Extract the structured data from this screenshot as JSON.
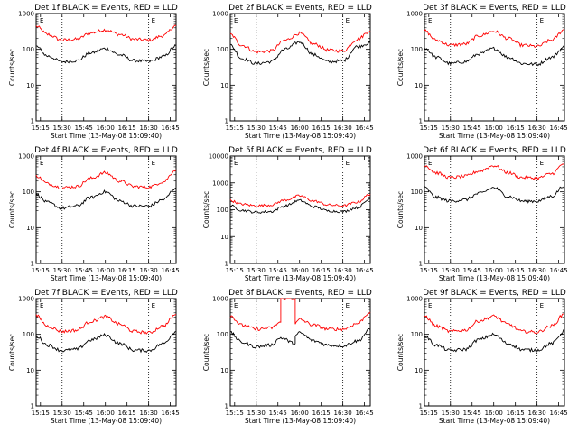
{
  "chart_data": [
    {
      "type": "line",
      "title": "Det 1f BLACK = Events, RED = LLD",
      "xlabel": "Start Time (13-May-08 15:09:40)",
      "ylabel": "Counts/sec",
      "y_scale": "log",
      "ylim": [
        1,
        1000
      ],
      "x_tick_labels": [
        "15:15",
        "15:30",
        "15:45",
        "16:00",
        "16:15",
        "16:30",
        "16:45"
      ],
      "y_tick_labels": [
        "1",
        "10",
        "100",
        "1000"
      ],
      "markers": [
        "E",
        "E"
      ],
      "series": [
        {
          "color": "#ff0000",
          "x": [
            "15:12",
            "15:20",
            "15:30",
            "15:40",
            "15:50",
            "16:00",
            "16:10",
            "16:20",
            "16:30",
            "16:40",
            "16:49"
          ],
          "values": [
            440,
            260,
            180,
            190,
            290,
            350,
            260,
            190,
            180,
            240,
            460
          ]
        },
        {
          "color": "#000000",
          "x": [
            "15:12",
            "15:20",
            "15:30",
            "15:40",
            "15:50",
            "16:00",
            "16:10",
            "16:20",
            "16:30",
            "16:40",
            "16:49"
          ],
          "values": [
            120,
            65,
            45,
            48,
            80,
            105,
            70,
            48,
            46,
            62,
            125
          ]
        }
      ]
    },
    {
      "type": "line",
      "title": "Det 2f BLACK = Events, RED = LLD",
      "xlabel": "Start Time (13-May-08 15:09:40)",
      "ylabel": "Counts/sec",
      "y_scale": "log",
      "ylim": [
        1,
        1000
      ],
      "x_tick_labels": [
        "15:15",
        "15:30",
        "15:45",
        "16:00",
        "16:15",
        "16:30",
        "16:45"
      ],
      "y_tick_labels": [
        "1",
        "10",
        "100",
        "1000"
      ],
      "markers": [
        "E",
        "E"
      ],
      "series": [
        {
          "color": "#ff0000",
          "x": [
            "15:12",
            "15:20",
            "15:30",
            "15:40",
            "15:50",
            "16:00",
            "16:10",
            "16:20",
            "16:30",
            "16:40",
            "16:49"
          ],
          "values": [
            260,
            130,
            85,
            90,
            180,
            280,
            140,
            95,
            90,
            190,
            330
          ]
        },
        {
          "color": "#000000",
          "x": [
            "15:12",
            "15:20",
            "15:30",
            "15:40",
            "15:50",
            "16:00",
            "16:10",
            "16:20",
            "16:30",
            "16:40",
            "16:49"
          ],
          "values": [
            130,
            55,
            40,
            45,
            100,
            160,
            70,
            45,
            48,
            120,
            150
          ]
        }
      ]
    },
    {
      "type": "line",
      "title": "Det 3f BLACK = Events, RED = LLD",
      "xlabel": "Start Time (13-May-08 15:09:40)",
      "ylabel": "Counts/sec",
      "y_scale": "log",
      "ylim": [
        1,
        1000
      ],
      "x_tick_labels": [
        "15:15",
        "15:30",
        "15:45",
        "16:00",
        "16:15",
        "16:30",
        "16:45"
      ],
      "y_tick_labels": [
        "1",
        "10",
        "100",
        "1000"
      ],
      "markers": [
        "E",
        "E"
      ],
      "series": [
        {
          "color": "#ff0000",
          "x": [
            "15:12",
            "15:20",
            "15:30",
            "15:40",
            "15:50",
            "16:00",
            "16:10",
            "16:20",
            "16:30",
            "16:40",
            "16:49"
          ],
          "values": [
            330,
            180,
            130,
            140,
            240,
            320,
            200,
            130,
            120,
            180,
            350
          ]
        },
        {
          "color": "#000000",
          "x": [
            "15:12",
            "15:20",
            "15:30",
            "15:40",
            "15:50",
            "16:00",
            "16:10",
            "16:20",
            "16:30",
            "16:40",
            "16:49"
          ],
          "values": [
            110,
            60,
            40,
            45,
            75,
            105,
            60,
            40,
            38,
            60,
            115
          ]
        }
      ]
    },
    {
      "type": "line",
      "title": "Det 4f BLACK = Events, RED = LLD",
      "xlabel": "Start Time (13-May-08 15:09:40)",
      "ylabel": "Counts/sec",
      "y_scale": "log",
      "ylim": [
        1,
        1000
      ],
      "x_tick_labels": [
        "15:15",
        "15:30",
        "15:45",
        "16:00",
        "16:15",
        "16:30",
        "16:45"
      ],
      "y_tick_labels": [
        "1",
        "10",
        "100",
        "1000"
      ],
      "markers": [
        "E",
        "E"
      ],
      "series": [
        {
          "color": "#ff0000",
          "x": [
            "15:12",
            "15:20",
            "15:30",
            "15:40",
            "15:50",
            "16:00",
            "16:10",
            "16:20",
            "16:30",
            "16:40",
            "16:49"
          ],
          "values": [
            280,
            170,
            130,
            140,
            240,
            340,
            200,
            140,
            135,
            190,
            420
          ]
        },
        {
          "color": "#000000",
          "x": [
            "15:12",
            "15:20",
            "15:30",
            "15:40",
            "15:50",
            "16:00",
            "16:10",
            "16:20",
            "16:30",
            "16:40",
            "16:49"
          ],
          "values": [
            85,
            50,
            35,
            40,
            70,
            100,
            55,
            40,
            40,
            60,
            130
          ]
        }
      ]
    },
    {
      "type": "line",
      "title": "Det 5f BLACK = Events, RED = LLD",
      "xlabel": "Start Time (13-May-08 15:09:40)",
      "ylabel": "Counts/sec",
      "y_scale": "log",
      "ylim": [
        1,
        10000
      ],
      "x_tick_labels": [
        "15:15",
        "15:30",
        "15:45",
        "16:00",
        "16:15",
        "16:30",
        "16:45"
      ],
      "y_tick_labels": [
        "1",
        "10",
        "100",
        "1000",
        "10000"
      ],
      "markers": [
        "E",
        "E"
      ],
      "series": [
        {
          "color": "#ff0000",
          "x": [
            "15:12",
            "15:20",
            "15:30",
            "15:40",
            "15:50",
            "16:00",
            "16:10",
            "16:20",
            "16:30",
            "16:40",
            "16:49"
          ],
          "values": [
            220,
            160,
            140,
            150,
            230,
            330,
            210,
            150,
            140,
            190,
            380
          ]
        },
        {
          "color": "#000000",
          "x": [
            "15:12",
            "15:20",
            "15:30",
            "15:40",
            "15:50",
            "16:00",
            "16:10",
            "16:20",
            "16:30",
            "16:40",
            "16:49"
          ],
          "values": [
            140,
            95,
            80,
            85,
            140,
            220,
            130,
            90,
            85,
            120,
            250
          ]
        }
      ]
    },
    {
      "type": "line",
      "title": "Det 6f BLACK = Events, RED = LLD",
      "xlabel": "Start Time (13-May-08 15:09:40)",
      "ylabel": "Counts/sec",
      "y_scale": "log",
      "ylim": [
        1,
        1000
      ],
      "x_tick_labels": [
        "15:15",
        "15:30",
        "15:45",
        "16:00",
        "16:15",
        "16:30",
        "16:45"
      ],
      "y_tick_labels": [
        "1",
        "10",
        "100",
        "1000"
      ],
      "markers": [
        "E",
        "E"
      ],
      "series": [
        {
          "color": "#ff0000",
          "x": [
            "15:12",
            "15:20",
            "15:30",
            "15:40",
            "15:50",
            "16:00",
            "16:10",
            "16:20",
            "16:30",
            "16:40",
            "16:49"
          ],
          "values": [
            560,
            340,
            250,
            270,
            380,
            540,
            340,
            250,
            240,
            320,
            620
          ]
        },
        {
          "color": "#000000",
          "x": [
            "15:12",
            "15:20",
            "15:30",
            "15:40",
            "15:50",
            "16:00",
            "16:10",
            "16:20",
            "16:30",
            "16:40",
            "16:49"
          ],
          "values": [
            130,
            70,
            55,
            60,
            90,
            130,
            75,
            55,
            55,
            75,
            150
          ]
        }
      ]
    },
    {
      "type": "line",
      "title": "Det 7f BLACK = Events, RED = LLD",
      "xlabel": "Start Time (13-May-08 15:09:40)",
      "ylabel": "Counts/sec",
      "y_scale": "log",
      "ylim": [
        1,
        1000
      ],
      "x_tick_labels": [
        "15:15",
        "15:30",
        "15:45",
        "16:00",
        "16:15",
        "16:30",
        "16:45"
      ],
      "y_tick_labels": [
        "1",
        "10",
        "100",
        "1000"
      ],
      "markers": [
        "E",
        "E"
      ],
      "series": [
        {
          "color": "#ff0000",
          "x": [
            "15:12",
            "15:20",
            "15:30",
            "15:40",
            "15:50",
            "16:00",
            "16:10",
            "16:20",
            "16:30",
            "16:40",
            "16:49"
          ],
          "values": [
            330,
            170,
            120,
            130,
            230,
            310,
            190,
            120,
            110,
            170,
            360
          ]
        },
        {
          "color": "#000000",
          "x": [
            "15:12",
            "15:20",
            "15:30",
            "15:40",
            "15:50",
            "16:00",
            "16:10",
            "16:20",
            "16:30",
            "16:40",
            "16:49"
          ],
          "values": [
            90,
            50,
            35,
            38,
            70,
            95,
            55,
            36,
            35,
            55,
            120
          ]
        }
      ]
    },
    {
      "type": "line",
      "title": "Det 8f BLACK = Events, RED = LLD",
      "xlabel": "Start Time (13-May-08 15:09:40)",
      "ylabel": "Counts/sec",
      "y_scale": "log",
      "ylim": [
        1,
        1000
      ],
      "x_tick_labels": [
        "15:15",
        "15:30",
        "15:45",
        "16:00",
        "16:15",
        "16:30",
        "16:45"
      ],
      "y_tick_labels": [
        "1",
        "10",
        "100",
        "1000"
      ],
      "markers": [
        "E",
        "E"
      ],
      "series": [
        {
          "color": "#ff0000",
          "x": [
            "15:12",
            "15:20",
            "15:30",
            "15:40",
            "15:47",
            "15:47",
            "15:57",
            "15:57",
            "16:00",
            "16:10",
            "16:20",
            "16:30",
            "16:40",
            "16:49"
          ],
          "values": [
            330,
            180,
            140,
            150,
            220,
            1000,
            1000,
            200,
            260,
            180,
            140,
            140,
            200,
            420
          ]
        },
        {
          "color": "#000000",
          "x": [
            "15:12",
            "15:20",
            "15:30",
            "15:40",
            "15:47",
            "15:57",
            "15:57",
            "16:00",
            "16:10",
            "16:20",
            "16:30",
            "16:40",
            "16:49"
          ],
          "values": [
            110,
            60,
            45,
            50,
            80,
            55,
            90,
            110,
            65,
            50,
            48,
            65,
            135
          ]
        }
      ]
    },
    {
      "type": "line",
      "title": "Det 9f BLACK = Events, RED = LLD",
      "xlabel": "Start Time (13-May-08 15:09:40)",
      "ylabel": "Counts/sec",
      "y_scale": "log",
      "ylim": [
        1,
        1000
      ],
      "x_tick_labels": [
        "15:15",
        "15:30",
        "15:45",
        "16:00",
        "16:15",
        "16:30",
        "16:45"
      ],
      "y_tick_labels": [
        "1",
        "10",
        "100",
        "1000"
      ],
      "markers": [
        "E",
        "E"
      ],
      "series": [
        {
          "color": "#ff0000",
          "x": [
            "15:12",
            "15:20",
            "15:30",
            "15:40",
            "15:50",
            "16:00",
            "16:10",
            "16:20",
            "16:30",
            "16:40",
            "16:49"
          ],
          "values": [
            330,
            170,
            120,
            130,
            240,
            320,
            190,
            120,
            115,
            170,
            370
          ]
        },
        {
          "color": "#000000",
          "x": [
            "15:12",
            "15:20",
            "15:30",
            "15:40",
            "15:50",
            "16:00",
            "16:10",
            "16:20",
            "16:30",
            "16:40",
            "16:49"
          ],
          "values": [
            90,
            50,
            35,
            38,
            72,
            98,
            55,
            37,
            36,
            55,
            120
          ]
        }
      ]
    }
  ]
}
